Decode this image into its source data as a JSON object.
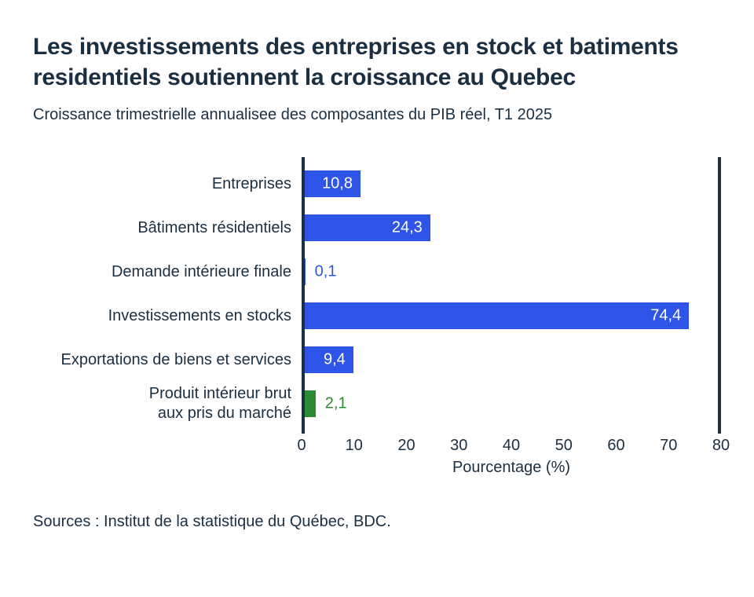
{
  "title": {
    "lines": [
      "Les investissements des entreprises en stock et batiments",
      "residentiels soutiennent la croissance au Quebec"
    ],
    "full": "Les investissements des entreprises en stock et batiments residentiels soutiennent la croissance au Quebec"
  },
  "subtitle": "Croissance trimestrielle annualisee des composantes du PIB réel, T1 2025",
  "source": "Sources : Institut de la statistique du Québec, BDC.",
  "colors": {
    "bar_blue": "#2F54E8",
    "bar_green": "#2C8A33",
    "axis": "#1B2F42",
    "text": "#1B2F42",
    "background": "#FFFFFF"
  },
  "chart_data": {
    "type": "bar",
    "orientation": "horizontal",
    "title": "Les investissements des entreprises en stock et batiments residentiels soutiennent la croissance au Quebec",
    "subtitle": "Croissance trimestrielle annualisee des composantes du PIB réel, T1 2025",
    "categories": [
      "Entreprises",
      "Bâtiments résidentiels",
      "Demande intérieure finale",
      "Investissements en stocks",
      "Exportations de biens et services",
      "Produit intérieur brut aux pris du marché"
    ],
    "categories_display": [
      [
        "Entreprises"
      ],
      [
        "Bâtiments résidentiels"
      ],
      [
        "Demande intérieure finale"
      ],
      [
        "Investissements en stocks"
      ],
      [
        "Exportations de biens et services"
      ],
      [
        "Produit intérieur brut",
        "aux pris du marché"
      ]
    ],
    "values": [
      10.8,
      24.3,
      0.1,
      74.4,
      9.4,
      2.1
    ],
    "value_labels": [
      "10,8",
      "24,3",
      "0,1",
      "74,4",
      "9,4",
      "2,1"
    ],
    "bar_colors": [
      "#2F54E8",
      "#2F54E8",
      "#2F54E8",
      "#2F54E8",
      "#2F54E8",
      "#2C8A33"
    ],
    "xlabel": "Pourcentage (%)",
    "xlim": [
      0,
      80
    ],
    "xticks": [
      "0",
      "10",
      "20",
      "30",
      "40",
      "50",
      "60",
      "70",
      "80"
    ],
    "inside_label_threshold": 5,
    "grid": false,
    "legend": false
  }
}
